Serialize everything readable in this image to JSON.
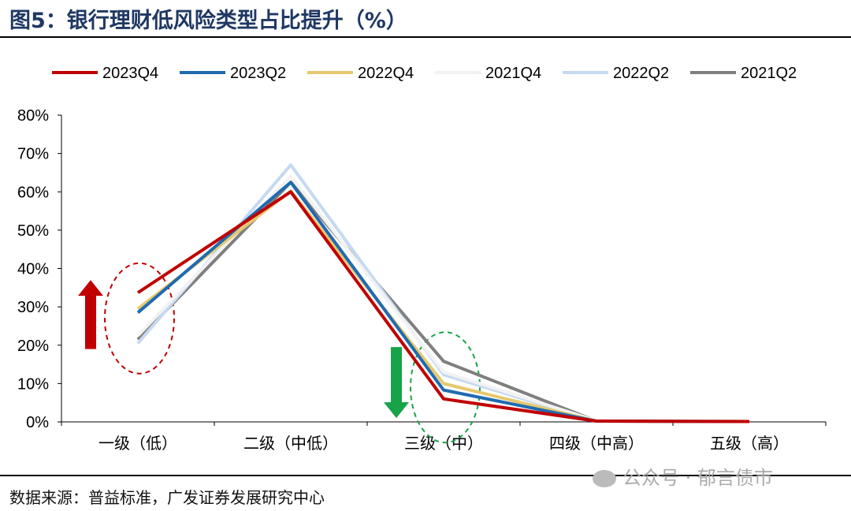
{
  "header": {
    "title": "图5：银行理财低风险类型占比提升（%）"
  },
  "footer": {
    "source": "数据来源：普益标准，广发证券发展研究中心"
  },
  "watermark": {
    "text": "公众号 · 郁言债市"
  },
  "chart_data": {
    "type": "line",
    "title": "",
    "xlabel": "",
    "ylabel": "",
    "categories": [
      "一级（低）",
      "二级（中低）",
      "三级（中）",
      "四级（中高）",
      "五级（高）"
    ],
    "ylim": [
      0,
      0.8
    ],
    "y_ticks": [
      "0%",
      "10%",
      "20%",
      "30%",
      "40%",
      "50%",
      "60%",
      "70%",
      "80%"
    ],
    "grid": false,
    "legend_position": "top",
    "series": [
      {
        "name": "2021Q2",
        "color": "#7f7f7f",
        "values": [
          0.215,
          0.625,
          0.158,
          0.002,
          0.002
        ]
      },
      {
        "name": "2022Q2",
        "color": "#c5d9f1",
        "values": [
          0.205,
          0.67,
          0.123,
          0.002,
          0.001
        ]
      },
      {
        "name": "2021Q4",
        "color": "#f2f2f2",
        "values": [
          0.225,
          0.64,
          0.13,
          0.003,
          0.002
        ]
      },
      {
        "name": "2022Q4",
        "color": "#e6c86e",
        "values": [
          0.295,
          0.602,
          0.1,
          0.002,
          0.001
        ]
      },
      {
        "name": "2023Q2",
        "color": "#1f6bb0",
        "values": [
          0.285,
          0.625,
          0.083,
          0.002,
          0.001
        ]
      },
      {
        "name": "2023Q4",
        "color": "#c00000",
        "values": [
          0.337,
          0.6,
          0.06,
          0.002,
          0.001
        ]
      }
    ],
    "legend_order": [
      "2023Q4",
      "2023Q2",
      "2022Q4",
      "2021Q4",
      "2022Q2",
      "2021Q2"
    ],
    "annotations": [
      {
        "kind": "arrow-up",
        "color": "#c00000",
        "category_index": 0,
        "from": 0.19,
        "to": 0.37
      },
      {
        "kind": "arrow-down",
        "color": "#18a349",
        "category_index": 2,
        "from": 0.195,
        "to": 0.01
      },
      {
        "kind": "dashed-ellipse",
        "color": "#c00000",
        "category_index": 0,
        "y_center": 0.27
      },
      {
        "kind": "dashed-ellipse",
        "color": "#18a349",
        "category_index": 2,
        "y_center": 0.09
      }
    ]
  }
}
